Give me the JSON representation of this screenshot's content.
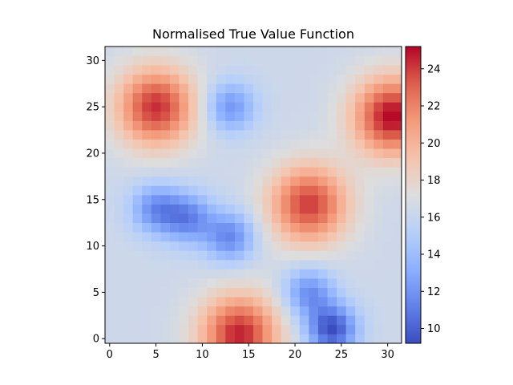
{
  "chart_data": {
    "type": "heatmap",
    "title": "Normalised True Value Function",
    "xlabel": "",
    "ylabel": "",
    "grid_size": [
      32,
      32
    ],
    "xlim": [
      -0.5,
      31.5
    ],
    "ylim": [
      -0.5,
      31.5
    ],
    "origin": "lower",
    "colormap": "coolwarm",
    "grid": false,
    "x_ticks": [
      0,
      5,
      10,
      15,
      20,
      25,
      30
    ],
    "y_ticks": [
      0,
      5,
      10,
      15,
      20,
      25,
      30
    ],
    "colorbar": {
      "position": "right",
      "min": 9.2,
      "max": 25.2,
      "ticks": [
        10,
        12,
        14,
        16,
        18,
        20,
        22,
        24
      ]
    },
    "background_value": 16.3,
    "features": [
      {
        "kind": "peak",
        "x": 5,
        "y": 25,
        "value": 24.3
      },
      {
        "kind": "peak",
        "x": 30.5,
        "y": 24,
        "value": 25.2
      },
      {
        "kind": "peak",
        "x": 21.5,
        "y": 14.5,
        "value": 24.0
      },
      {
        "kind": "peak",
        "x": 14,
        "y": 0.5,
        "value": 24.6
      },
      {
        "kind": "trough",
        "x": 13,
        "y": 25,
        "value": 12.0
      },
      {
        "kind": "trough",
        "x": 5,
        "y": 14,
        "value": 11.8
      },
      {
        "kind": "trough",
        "x": 8.5,
        "y": 13,
        "value": 11.6
      },
      {
        "kind": "trough",
        "x": 13,
        "y": 11,
        "value": 11.5
      },
      {
        "kind": "trough",
        "x": 21.5,
        "y": 5,
        "value": 11.8
      },
      {
        "kind": "trough",
        "x": 24,
        "y": 1,
        "value": 9.4
      }
    ]
  }
}
